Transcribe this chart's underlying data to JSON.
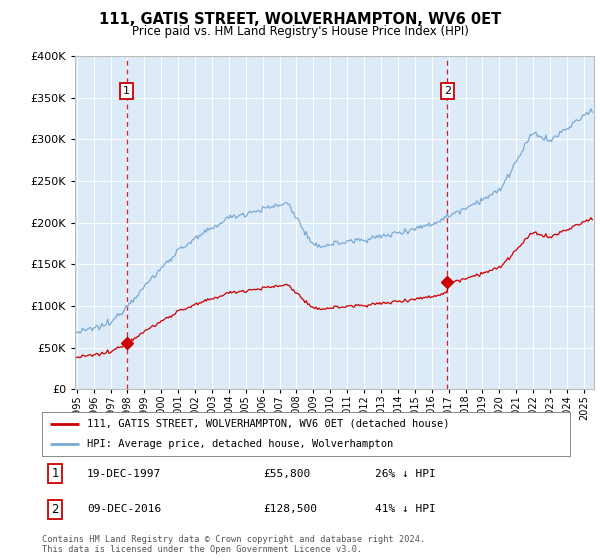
{
  "title": "111, GATIS STREET, WOLVERHAMPTON, WV6 0ET",
  "subtitle": "Price paid vs. HM Land Registry's House Price Index (HPI)",
  "legend_line1": "111, GATIS STREET, WOLVERHAMPTON, WV6 0ET (detached house)",
  "legend_line2": "HPI: Average price, detached house, Wolverhampton",
  "footnote": "Contains HM Land Registry data © Crown copyright and database right 2024.\nThis data is licensed under the Open Government Licence v3.0.",
  "annotation1_date": "19-DEC-1997",
  "annotation1_price": "£55,800",
  "annotation1_hpi": "26% ↓ HPI",
  "annotation2_date": "09-DEC-2016",
  "annotation2_price": "£128,500",
  "annotation2_hpi": "41% ↓ HPI",
  "sale1_x": 1997.96,
  "sale1_y": 55800,
  "sale2_x": 2016.93,
  "sale2_y": 128500,
  "hpi_color": "#7aaad4",
  "price_color": "#cc0000",
  "vline_color": "#cc0000",
  "plot_bg": "#ddeaf7",
  "ylim": [
    0,
    400000
  ],
  "xlim_start": 1994.9,
  "xlim_end": 2025.6,
  "yticks": [
    0,
    50000,
    100000,
    150000,
    200000,
    250000,
    300000,
    350000,
    400000
  ],
  "xticks": [
    1995,
    1996,
    1997,
    1998,
    1999,
    2000,
    2001,
    2002,
    2003,
    2004,
    2005,
    2006,
    2007,
    2008,
    2009,
    2010,
    2011,
    2012,
    2013,
    2014,
    2015,
    2016,
    2017,
    2018,
    2019,
    2020,
    2021,
    2022,
    2023,
    2024,
    2025
  ]
}
